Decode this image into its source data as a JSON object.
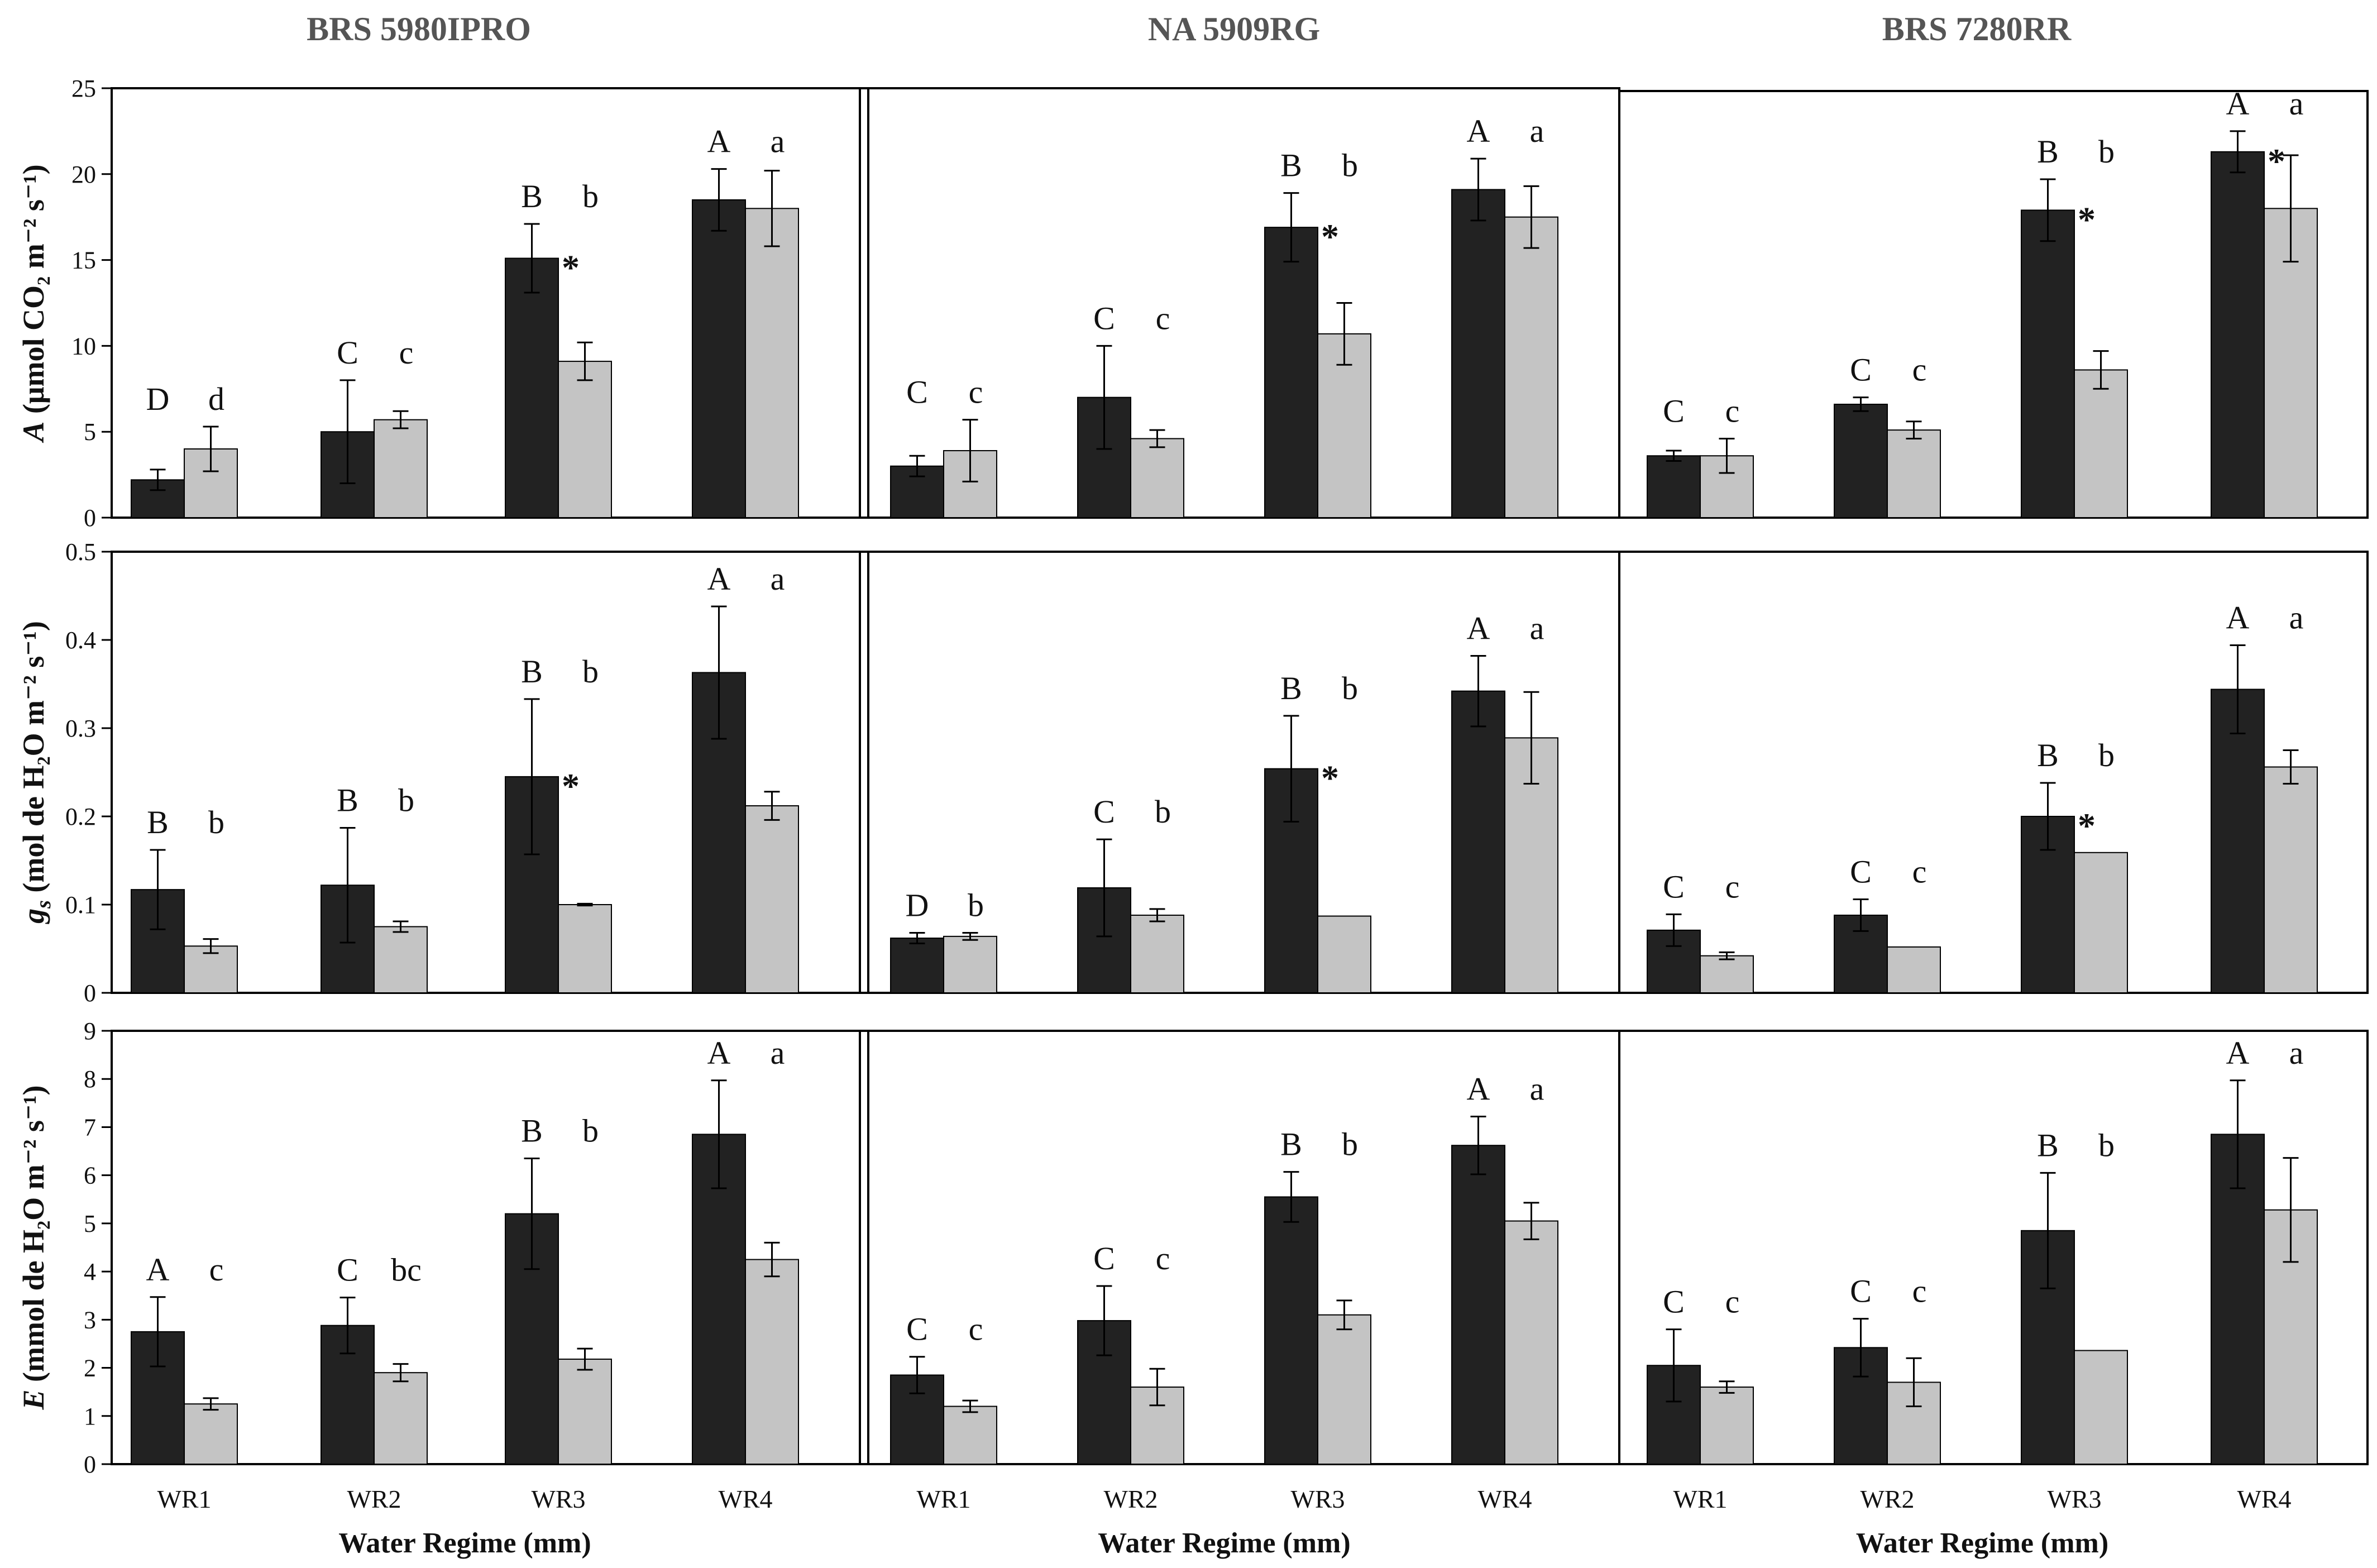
{
  "colors": {
    "wet": "#222222",
    "dry": "#c4c4c4",
    "axis": "#000000",
    "title": "#555555"
  },
  "columns": [
    "BRS 5980IPRO",
    "NA 5909RG",
    "BRS 7280RR"
  ],
  "row_labels": [
    {
      "main": "A",
      "text": " (μmol CO₂ m⁻² s⁻¹)"
    },
    {
      "main": "g",
      "sub": "s",
      "text": " (mol de H₂O m⁻² s⁻¹)"
    },
    {
      "main": "E",
      "text": " (mmol de H₂O m⁻² s⁻¹)"
    }
  ],
  "xlabel": "Water Regime (mm)",
  "categories": [
    "WR1",
    "WR2",
    "WR3",
    "WR4"
  ],
  "chart_data": [
    {
      "type": "bar",
      "metric": "A",
      "ylim": [
        0,
        25
      ],
      "yticks": [
        "0",
        "5",
        "10",
        "15",
        "20",
        "25"
      ],
      "cultivars": [
        {
          "name": "BRS 5980IPRO",
          "dark": [
            2.2,
            5.0,
            15.1,
            18.5
          ],
          "dark_err": [
            0.6,
            3.0,
            2.0,
            1.8
          ],
          "light": [
            4.0,
            5.7,
            9.1,
            18.0
          ],
          "light_err": [
            1.3,
            0.5,
            1.1,
            2.2
          ],
          "upper": [
            "D",
            "C",
            "B",
            "A"
          ],
          "lower": [
            "d",
            "c",
            "b",
            "a"
          ],
          "star": [
            false,
            false,
            true,
            false
          ]
        },
        {
          "name": "NA 5909RG",
          "dark": [
            3.0,
            7.0,
            16.9,
            19.1
          ],
          "dark_err": [
            0.6,
            3.0,
            2.0,
            1.8
          ],
          "light": [
            3.9,
            4.6,
            10.7,
            17.5
          ],
          "light_err": [
            1.8,
            0.5,
            1.8,
            1.8
          ],
          "upper": [
            "C",
            "C",
            "B",
            "A"
          ],
          "lower": [
            "c",
            "c",
            "b",
            "a"
          ],
          "star": [
            false,
            false,
            true,
            false
          ]
        },
        {
          "name": "BRS 7280RR",
          "dark": [
            3.6,
            6.6,
            17.9,
            21.3
          ],
          "dark_err": [
            0.3,
            0.4,
            1.8,
            1.2
          ],
          "light": [
            3.6,
            5.1,
            8.6,
            18.0
          ],
          "light_err": [
            1.0,
            0.5,
            1.1,
            3.1
          ],
          "upper": [
            "C",
            "C",
            "B",
            "A"
          ],
          "lower": [
            "c",
            "c",
            "b",
            "a"
          ],
          "star": [
            false,
            false,
            true,
            true
          ]
        }
      ]
    },
    {
      "type": "bar",
      "metric": "gs",
      "ylim": [
        0,
        0.5
      ],
      "yticks": [
        "0",
        "0.1",
        "0.2",
        "0.3",
        "0.4",
        "0.5"
      ],
      "cultivars": [
        {
          "name": "BRS 5980IPRO",
          "dark": [
            0.117,
            0.122,
            0.245,
            0.363
          ],
          "dark_err": [
            0.045,
            0.065,
            0.088,
            0.075
          ],
          "light": [
            0.053,
            0.075,
            0.1,
            0.212
          ],
          "light_err": [
            0.008,
            0.006,
            0.001,
            0.016
          ],
          "upper": [
            "B",
            "B",
            "B",
            "A"
          ],
          "lower": [
            "b",
            "b",
            "b",
            "a"
          ],
          "star": [
            false,
            false,
            true,
            false
          ]
        },
        {
          "name": "NA 5909RG",
          "dark": [
            0.062,
            0.119,
            0.254,
            0.342
          ],
          "dark_err": [
            0.006,
            0.055,
            0.06,
            0.04
          ],
          "light": [
            0.064,
            0.088,
            0.087,
            0.289
          ],
          "light_err": [
            0.004,
            0.007,
            0.0,
            0.052
          ],
          "upper": [
            "D",
            "C",
            "B",
            "A"
          ],
          "lower": [
            "b",
            "b",
            "b",
            "a"
          ],
          "star": [
            false,
            false,
            true,
            false
          ]
        },
        {
          "name": "BRS 7280RR",
          "dark": [
            0.071,
            0.088,
            0.2,
            0.344
          ],
          "dark_err": [
            0.018,
            0.018,
            0.038,
            0.05
          ],
          "light": [
            0.042,
            0.052,
            0.159,
            0.256
          ],
          "light_err": [
            0.004,
            0.0,
            0.0,
            0.019
          ],
          "upper": [
            "C",
            "C",
            "B",
            "A"
          ],
          "lower": [
            "c",
            "c",
            "b",
            "a"
          ],
          "star": [
            false,
            false,
            true,
            false
          ]
        }
      ]
    },
    {
      "type": "bar",
      "metric": "E",
      "ylim": [
        0,
        9
      ],
      "yticks": [
        "0",
        "1",
        "2",
        "3",
        "4",
        "5",
        "6",
        "7",
        "8",
        "9"
      ],
      "cultivars": [
        {
          "name": "BRS 5980IPRO",
          "dark": [
            2.75,
            2.88,
            5.2,
            6.85
          ],
          "dark_err": [
            0.72,
            0.58,
            1.15,
            1.12
          ],
          "light": [
            1.25,
            1.9,
            2.18,
            4.25
          ],
          "light_err": [
            0.12,
            0.18,
            0.22,
            0.35
          ],
          "upper": [
            "A",
            "C",
            "B",
            "A"
          ],
          "lower": [
            "c",
            "bc",
            "b",
            "a"
          ],
          "star": [
            false,
            false,
            false,
            false
          ]
        },
        {
          "name": "NA 5909RG",
          "dark": [
            1.85,
            2.98,
            5.55,
            6.62
          ],
          "dark_err": [
            0.38,
            0.72,
            0.52,
            0.6
          ],
          "light": [
            1.2,
            1.6,
            3.1,
            5.05
          ],
          "light_err": [
            0.12,
            0.38,
            0.3,
            0.38
          ],
          "upper": [
            "C",
            "C",
            "B",
            "A"
          ],
          "lower": [
            "c",
            "c",
            "b",
            "a"
          ],
          "star": [
            false,
            false,
            false,
            false
          ]
        },
        {
          "name": "BRS 7280RR",
          "dark": [
            2.05,
            2.42,
            4.85,
            6.85
          ],
          "dark_err": [
            0.75,
            0.6,
            1.2,
            1.12
          ],
          "light": [
            1.6,
            1.7,
            2.36,
            5.28
          ],
          "light_err": [
            0.12,
            0.5,
            0.0,
            1.08
          ],
          "upper": [
            "C",
            "C",
            "B",
            "A"
          ],
          "lower": [
            "c",
            "c",
            "b",
            "a"
          ],
          "star": [
            false,
            false,
            false,
            false
          ]
        }
      ]
    }
  ]
}
